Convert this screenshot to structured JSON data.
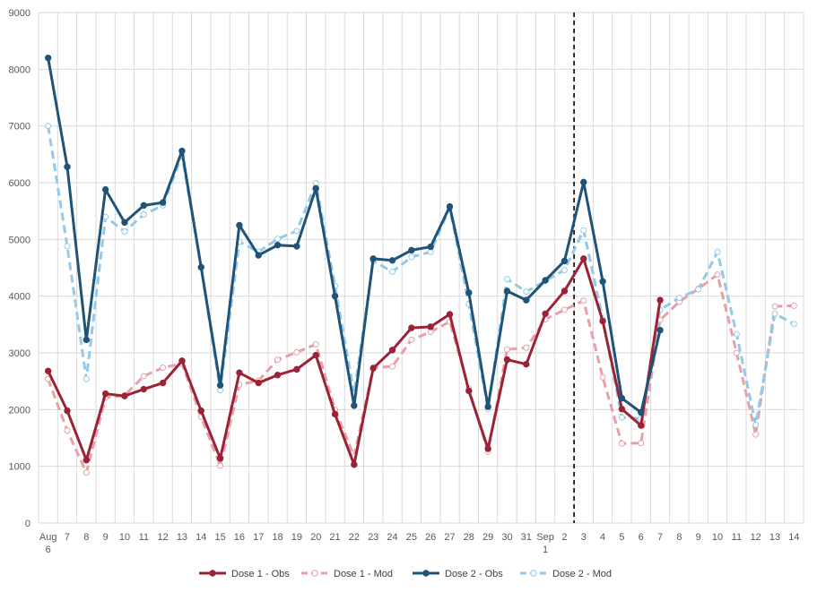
{
  "chart_data": {
    "type": "line",
    "title": "",
    "xlabel": "",
    "ylabel": "",
    "ylim": [
      0,
      9000
    ],
    "yticks": [
      0,
      1000,
      2000,
      3000,
      4000,
      5000,
      6000,
      7000,
      8000,
      9000
    ],
    "grid": true,
    "legend_position": "bottom",
    "categories": [
      [
        "Aug",
        "6"
      ],
      [
        "7"
      ],
      [
        "8"
      ],
      [
        "9"
      ],
      [
        "10"
      ],
      [
        "11"
      ],
      [
        "12"
      ],
      [
        "13"
      ],
      [
        "14"
      ],
      [
        "15"
      ],
      [
        "16"
      ],
      [
        "17"
      ],
      [
        "18"
      ],
      [
        "19"
      ],
      [
        "20"
      ],
      [
        "21"
      ],
      [
        "22"
      ],
      [
        "23"
      ],
      [
        "24"
      ],
      [
        "25"
      ],
      [
        "26"
      ],
      [
        "27"
      ],
      [
        "28"
      ],
      [
        "29"
      ],
      [
        "30"
      ],
      [
        "31"
      ],
      [
        "Sep",
        "1"
      ],
      [
        "2"
      ],
      [
        "3"
      ],
      [
        "4"
      ],
      [
        "5"
      ],
      [
        "6"
      ],
      [
        "7"
      ],
      [
        "8"
      ],
      [
        "9"
      ],
      [
        "10"
      ],
      [
        "11"
      ],
      [
        "12"
      ],
      [
        "13"
      ],
      [
        "14"
      ]
    ],
    "vline_after_index": 27,
    "series": [
      {
        "name": "Dose 1 - Obs",
        "color": "#9b2335",
        "dashed": false,
        "values": [
          2680,
          1980,
          1110,
          2280,
          2240,
          2360,
          2470,
          2860,
          1980,
          1140,
          2650,
          2470,
          2610,
          2710,
          2960,
          1920,
          1030,
          2730,
          3050,
          3440,
          3460,
          3680,
          2330,
          1310,
          2880,
          2800,
          3690,
          4090,
          4660,
          3560,
          2010,
          1720,
          3930,
          null,
          null,
          null,
          null,
          null,
          null,
          null
        ]
      },
      {
        "name": "Dose 1 - Mod",
        "color": "#e8a0a8",
        "dashed": true,
        "values": [
          2540,
          1630,
          890,
          2210,
          2250,
          2590,
          2740,
          2810,
          1870,
          1010,
          2440,
          2510,
          2880,
          3010,
          3150,
          2000,
          1180,
          2740,
          2760,
          3230,
          3370,
          3550,
          2370,
          1260,
          3060,
          3090,
          3590,
          3760,
          3920,
          2570,
          1400,
          1410,
          3580,
          3900,
          4130,
          4380,
          3000,
          1560,
          3820,
          3830
        ]
      },
      {
        "name": "Dose 2 - Obs",
        "color": "#1f5378",
        "dashed": false,
        "values": [
          8200,
          6280,
          3230,
          5880,
          5300,
          5600,
          5650,
          6560,
          4510,
          2430,
          5250,
          4720,
          4900,
          4880,
          5900,
          4000,
          2070,
          4660,
          4630,
          4810,
          4870,
          5580,
          4060,
          2050,
          4090,
          3930,
          4280,
          4620,
          6010,
          4260,
          2200,
          1950,
          3400,
          null,
          null,
          null,
          null,
          null,
          null,
          null
        ]
      },
      {
        "name": "Dose 2 - Mod",
        "color": "#95c9e8",
        "dashed": true,
        "values": [
          7000,
          4880,
          2540,
          5400,
          5140,
          5440,
          5600,
          6480,
          4510,
          2340,
          4960,
          4780,
          5010,
          5150,
          5990,
          4180,
          2280,
          4620,
          4430,
          4690,
          4780,
          5560,
          3860,
          2010,
          4300,
          4080,
          4270,
          4460,
          5160,
          3600,
          1860,
          1840,
          3760,
          3970,
          4120,
          4780,
          3330,
          1730,
          3690,
          3510
        ]
      }
    ]
  }
}
